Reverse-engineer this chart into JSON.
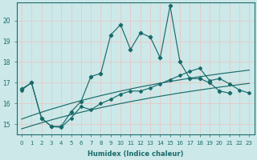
{
  "xlabel": "Humidex (Indice chaleur)",
  "background_color": "#cce8e8",
  "grid_color": "#e8c8c8",
  "line_color": "#1a6b6b",
  "x_ticks": [
    0,
    1,
    2,
    3,
    4,
    5,
    6,
    7,
    8,
    9,
    10,
    11,
    12,
    13,
    14,
    15,
    16,
    17,
    18,
    19,
    20,
    21,
    22,
    23
  ],
  "y_ticks": [
    15,
    16,
    17,
    18,
    19,
    20
  ],
  "xlim": [
    -0.5,
    23.5
  ],
  "ylim": [
    14.5,
    20.85
  ],
  "max_line": [
    16.7,
    17.0,
    15.3,
    14.9,
    14.9,
    15.6,
    16.1,
    17.3,
    17.45,
    19.3,
    19.8,
    18.6,
    19.4,
    19.2,
    18.2,
    20.7,
    18.0,
    17.2,
    17.2,
    17.0,
    16.6,
    16.5,
    -999,
    -999
  ],
  "lower_jagged": [
    16.65,
    17.0,
    15.3,
    14.9,
    14.85,
    15.3,
    15.85,
    15.7,
    16.0,
    16.2,
    16.45,
    16.6,
    16.6,
    16.75,
    16.95,
    17.15,
    17.35,
    17.55,
    17.7,
    17.1,
    17.2,
    16.95,
    16.65,
    16.5
  ],
  "trend_upper": [
    15.25,
    15.42,
    15.58,
    15.73,
    15.87,
    16.01,
    16.14,
    16.26,
    16.38,
    16.49,
    16.6,
    16.7,
    16.8,
    16.89,
    16.98,
    17.06,
    17.14,
    17.22,
    17.29,
    17.36,
    17.43,
    17.49,
    17.55,
    17.61
  ],
  "trend_lower": [
    14.78,
    14.93,
    15.07,
    15.21,
    15.34,
    15.46,
    15.58,
    15.69,
    15.8,
    15.9,
    16.0,
    16.09,
    16.18,
    16.27,
    16.35,
    16.43,
    16.51,
    16.58,
    16.65,
    16.72,
    16.79,
    16.85,
    16.91,
    16.97
  ]
}
